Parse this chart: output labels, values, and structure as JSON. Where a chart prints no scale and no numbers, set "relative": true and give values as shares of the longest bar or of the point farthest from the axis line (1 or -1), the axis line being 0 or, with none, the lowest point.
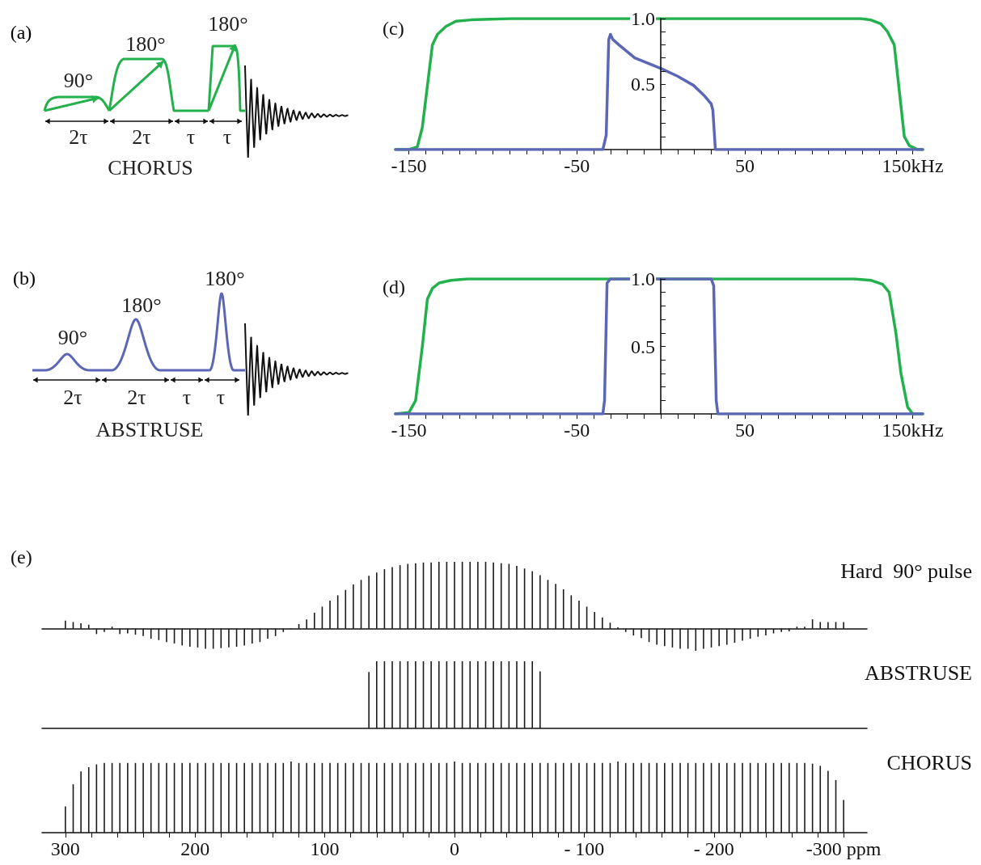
{
  "chart_data": [
    {
      "type": "other",
      "title": "(a)",
      "annotations": [
        "90°",
        "180°",
        "180°",
        "2τ",
        "2τ",
        "τ",
        "τ",
        "CHORUS"
      ]
    },
    {
      "type": "line",
      "title": "(c)",
      "xlim": [
        -158,
        156
      ],
      "ylim": [
        0,
        1
      ],
      "xticks": [
        -150,
        {
          "value": -140,
          "label": null
        },
        {
          "value": -130,
          "label": null
        },
        {
          "value": -120,
          "label": null
        },
        {
          "value": -110,
          "label": null
        },
        {
          "value": -100,
          "label": null
        },
        {
          "value": -90,
          "label": null
        },
        {
          "value": -80,
          "label": null
        },
        {
          "value": -70,
          "label": null
        },
        {
          "value": -60,
          "label": null
        },
        -50,
        {
          "value": -40,
          "label": null
        },
        {
          "value": -30,
          "label": null
        },
        {
          "value": -20,
          "label": null
        },
        {
          "value": -10,
          "label": null
        },
        {
          "value": 0,
          "label": null
        },
        {
          "value": 10,
          "label": null
        },
        {
          "value": 20,
          "label": null
        },
        {
          "value": 30,
          "label": null
        },
        {
          "value": 40,
          "label": null
        },
        50,
        {
          "value": 60,
          "label": null
        },
        {
          "value": 70,
          "label": null
        },
        {
          "value": 80,
          "label": null
        },
        {
          "value": 90,
          "label": null
        },
        {
          "value": 100,
          "label": null
        },
        {
          "value": 110,
          "label": null
        },
        {
          "value": 120,
          "label": null
        },
        {
          "value": 130,
          "label": null
        },
        {
          "value": 140,
          "label": null
        },
        {
          "value": 150,
          "label": "150kHz"
        }
      ],
      "yticks": [
        {
          "value": 0.1,
          "label": null
        },
        {
          "value": 0.2,
          "label": null
        },
        {
          "value": 0.3,
          "label": null
        },
        {
          "value": 0.4,
          "label": null
        },
        0.5,
        {
          "value": 0.6,
          "label": null
        },
        {
          "value": 0.7,
          "label": null
        },
        {
          "value": 0.8,
          "label": null
        },
        {
          "value": 0.9,
          "label": null
        },
        {
          "value": 1,
          "label": "1.0"
        }
      ],
      "marker": "none",
      "line_style": "solid",
      "series": [
        {
          "color": "#22b14c",
          "x": [
            -158,
            -150,
            -145,
            -142,
            -136,
            -133,
            -128,
            -122,
            -113,
            -90,
            0,
            90,
            119,
            125,
            131,
            135,
            139,
            145,
            148,
            153,
            156
          ],
          "values": [
            0,
            0,
            0.02,
            0.17,
            0.8,
            0.88,
            0.94,
            0.98,
            0.99,
            1,
            1,
            1,
            1,
            0.99,
            0.96,
            0.9,
            0.8,
            0.1,
            0.03,
            0,
            0
          ]
        },
        {
          "color": "#5b67b5",
          "x": [
            -158,
            -34.5,
            -32.5,
            -31,
            -30,
            -28.5,
            -25,
            -15.5,
            0,
            10,
            19.5,
            26,
            30,
            31,
            32.5,
            156
          ],
          "values": [
            0,
            0,
            0.11,
            0.84,
            0.88,
            0.84,
            0.8,
            0.7,
            0.62,
            0.56,
            0.49,
            0.41,
            0.35,
            0.3,
            0,
            0
          ]
        }
      ]
    },
    {
      "type": "other",
      "title": "(b)",
      "annotations": [
        "90°",
        "180°",
        "180°",
        "2τ",
        "2τ",
        "τ",
        "τ",
        "ABSTRUSE"
      ]
    },
    {
      "type": "line",
      "title": "(d)",
      "xlim": [
        -158,
        156
      ],
      "ylim": [
        0,
        1
      ],
      "xticks": [
        -150,
        {
          "value": -140,
          "label": null
        },
        {
          "value": -130,
          "label": null
        },
        {
          "value": -120,
          "label": null
        },
        {
          "value": -110,
          "label": null
        },
        {
          "value": -100,
          "label": null
        },
        {
          "value": -90,
          "label": null
        },
        {
          "value": -80,
          "label": null
        },
        {
          "value": -70,
          "label": null
        },
        {
          "value": -60,
          "label": null
        },
        -50,
        {
          "value": -40,
          "label": null
        },
        {
          "value": -30,
          "label": null
        },
        {
          "value": -20,
          "label": null
        },
        {
          "value": -10,
          "label": null
        },
        {
          "value": 0,
          "label": null
        },
        {
          "value": 10,
          "label": null
        },
        {
          "value": 20,
          "label": null
        },
        {
          "value": 30,
          "label": null
        },
        {
          "value": 40,
          "label": null
        },
        50,
        {
          "value": 60,
          "label": null
        },
        {
          "value": 70,
          "label": null
        },
        {
          "value": 80,
          "label": null
        },
        {
          "value": 90,
          "label": null
        },
        {
          "value": 100,
          "label": null
        },
        {
          "value": 110,
          "label": null
        },
        {
          "value": 120,
          "label": null
        },
        {
          "value": 130,
          "label": null
        },
        {
          "value": 140,
          "label": null
        },
        {
          "value": 150,
          "label": "150kHz"
        }
      ],
      "yticks": [
        {
          "value": 0.1,
          "label": null
        },
        {
          "value": 0.2,
          "label": null
        },
        {
          "value": 0.3,
          "label": null
        },
        {
          "value": 0.4,
          "label": null
        },
        0.5,
        {
          "value": 0.6,
          "label": null
        },
        {
          "value": 0.7,
          "label": null
        },
        {
          "value": 0.8,
          "label": null
        },
        {
          "value": 0.9,
          "label": null
        },
        {
          "value": 1,
          "label": "1.0"
        }
      ],
      "marker": "none",
      "line_style": "solid",
      "series": [
        {
          "color": "#22b14c",
          "x": [
            -158,
            -150,
            -146,
            -142,
            -139,
            -136,
            -132,
            -125,
            -115,
            0,
            115,
            125,
            132,
            136,
            140,
            143,
            147,
            150,
            156
          ],
          "values": [
            0,
            0.01,
            0.1,
            0.5,
            0.85,
            0.93,
            0.97,
            0.99,
            1,
            1,
            1,
            0.99,
            0.96,
            0.9,
            0.6,
            0.3,
            0.05,
            0,
            0
          ]
        },
        {
          "color": "#5b67b5",
          "x": [
            -158,
            -34.5,
            -33.5,
            -32,
            -30,
            0,
            30,
            31.5,
            33,
            34,
            156
          ],
          "values": [
            0,
            0,
            0.1,
            0.97,
            1,
            1,
            1,
            0.95,
            0.1,
            0,
            0
          ]
        }
      ]
    },
    {
      "type": "bar",
      "title": "(e)",
      "relative": true,
      "xlim": [
        318,
        -318
      ],
      "tick_labels": false,
      "x": [
        300,
        294,
        288,
        282,
        276,
        270,
        264,
        258,
        252,
        246,
        240,
        234,
        228,
        222,
        216,
        210,
        204,
        198,
        192,
        186,
        180,
        174,
        168,
        162,
        156,
        150,
        144,
        138,
        132,
        126,
        120,
        114,
        108,
        102,
        96,
        90,
        84,
        78,
        72,
        66,
        60,
        54,
        48,
        42,
        36,
        30,
        24,
        18,
        12,
        6,
        0,
        -6,
        -12,
        -18,
        -24,
        -30,
        -36,
        -42,
        -48,
        -54,
        -60,
        -66,
        -72,
        -78,
        -84,
        -90,
        -96,
        -102,
        -108,
        -114,
        -120,
        -126,
        -132,
        -138,
        -144,
        -150,
        -156,
        -162,
        -168,
        -174,
        -180,
        -186,
        -192,
        -198,
        -204,
        -210,
        -216,
        -222,
        -228,
        -234,
        -240,
        -246,
        -252,
        -258,
        -264,
        -270,
        -276,
        -282,
        -288,
        -294,
        -300
      ],
      "series": [
        {
          "name": "Hard  90° pulse",
          "color": "#1a1a1a",
          "values": [
            0.12,
            0.1,
            0.08,
            0.06,
            -0.08,
            -0.05,
            0.03,
            -0.08,
            -0.07,
            -0.09,
            -0.11,
            -0.15,
            -0.17,
            -0.2,
            -0.22,
            -0.25,
            -0.27,
            -0.28,
            -0.3,
            -0.3,
            -0.29,
            -0.28,
            -0.27,
            -0.25,
            -0.22,
            -0.2,
            -0.15,
            -0.11,
            -0.05,
            0.01,
            0.07,
            0.14,
            0.24,
            0.33,
            0.42,
            0.5,
            0.58,
            0.66,
            0.73,
            0.79,
            0.84,
            0.89,
            0.92,
            0.95,
            0.97,
            0.98,
            0.99,
            0.99,
            1,
            1,
            1,
            1,
            1,
            1,
            1,
            0.99,
            0.98,
            0.97,
            0.94,
            0.9,
            0.86,
            0.8,
            0.73,
            0.67,
            0.59,
            0.5,
            0.42,
            0.33,
            0.25,
            0.17,
            0.09,
            0.02,
            -0.05,
            -0.1,
            -0.14,
            -0.2,
            -0.24,
            -0.26,
            -0.28,
            -0.3,
            -0.3,
            -0.33,
            -0.3,
            -0.28,
            -0.26,
            -0.24,
            -0.21,
            -0.18,
            -0.15,
            -0.12,
            -0.1,
            -0.07,
            -0.05,
            -0.04,
            0.03,
            0.03,
            0.14,
            0.1,
            0.1,
            0.1,
            0.1
          ]
        }
      ]
    },
    {
      "type": "bar",
      "relative": true,
      "xlim": [
        318,
        -318
      ],
      "tick_labels": false,
      "x": [
        66,
        60,
        54,
        48,
        42,
        36,
        30,
        24,
        18,
        12,
        6,
        0,
        -6,
        -12,
        -18,
        -24,
        -30,
        -36,
        -42,
        -48,
        -54,
        -60,
        -66
      ],
      "series": [
        {
          "name": "ABSTRUSE",
          "color": "#1a1a1a",
          "values": [
            0.84,
            1,
            1,
            1,
            1,
            1,
            1,
            1,
            1,
            1,
            1,
            1,
            1,
            1,
            1,
            1,
            1,
            1,
            1,
            1,
            1,
            1,
            0.85
          ]
        }
      ]
    },
    {
      "type": "bar",
      "relative": true,
      "xlim": [
        318,
        -318
      ],
      "xticks": [
        300,
        {
          "value": 280,
          "label": null
        },
        {
          "value": 260,
          "label": null
        },
        {
          "value": 240,
          "label": null
        },
        {
          "value": 220,
          "label": null
        },
        200,
        {
          "value": 180,
          "label": null
        },
        {
          "value": 160,
          "label": null
        },
        {
          "value": 140,
          "label": null
        },
        {
          "value": 120,
          "label": null
        },
        100,
        {
          "value": 80,
          "label": null
        },
        {
          "value": 60,
          "label": null
        },
        {
          "value": 40,
          "label": null
        },
        {
          "value": 20,
          "label": null
        },
        0,
        {
          "value": -20,
          "label": null
        },
        {
          "value": -40,
          "label": null
        },
        {
          "value": -60,
          "label": null
        },
        {
          "value": -80,
          "label": null
        },
        {
          "value": -100,
          "label": "- 100"
        },
        {
          "value": -120,
          "label": null
        },
        {
          "value": -140,
          "label": null
        },
        {
          "value": -160,
          "label": null
        },
        {
          "value": -180,
          "label": null
        },
        {
          "value": -200,
          "label": "- 200"
        },
        {
          "value": -220,
          "label": null
        },
        {
          "value": -240,
          "label": null
        },
        {
          "value": -260,
          "label": null
        },
        {
          "value": -280,
          "label": null
        },
        {
          "value": -300,
          "label": "-300 ppm"
        }
      ],
      "x": [
        300,
        294,
        288,
        282,
        276,
        270,
        264,
        258,
        252,
        246,
        240,
        234,
        228,
        222,
        216,
        210,
        204,
        198,
        192,
        186,
        180,
        174,
        168,
        162,
        156,
        150,
        144,
        138,
        132,
        126,
        120,
        114,
        108,
        102,
        96,
        90,
        84,
        78,
        72,
        66,
        60,
        54,
        48,
        42,
        36,
        30,
        24,
        18,
        12,
        6,
        0,
        -6,
        -12,
        -18,
        -24,
        -30,
        -36,
        -42,
        -48,
        -54,
        -60,
        -66,
        -72,
        -78,
        -84,
        -90,
        -96,
        -102,
        -108,
        -114,
        -120,
        -126,
        -132,
        -138,
        -144,
        -150,
        -156,
        -162,
        -168,
        -174,
        -180,
        -186,
        -192,
        -198,
        -204,
        -210,
        -216,
        -222,
        -228,
        -234,
        -240,
        -246,
        -252,
        -258,
        -264,
        -270,
        -276,
        -282,
        -288,
        -294,
        -300
      ],
      "series": [
        {
          "name": "CHORUS",
          "color": "#1a1a1a",
          "values": [
            0.37,
            0.68,
            0.86,
            0.92,
            0.96,
            0.98,
            0.98,
            0.98,
            0.98,
            0.98,
            0.98,
            0.98,
            0.98,
            0.98,
            0.98,
            0.98,
            0.98,
            0.98,
            0.98,
            0.98,
            0.98,
            0.98,
            0.98,
            0.98,
            0.98,
            0.98,
            0.98,
            0.98,
            0.98,
            1,
            0.98,
            0.98,
            0.98,
            0.98,
            0.98,
            0.98,
            0.98,
            0.98,
            0.98,
            0.98,
            0.98,
            0.98,
            0.98,
            0.98,
            0.98,
            0.98,
            0.98,
            0.98,
            0.98,
            0.98,
            1,
            0.98,
            0.98,
            0.98,
            0.98,
            0.98,
            0.98,
            0.98,
            0.98,
            0.98,
            0.98,
            0.98,
            0.98,
            0.98,
            0.98,
            0.98,
            0.98,
            0.98,
            0.98,
            0.98,
            0.98,
            1,
            0.98,
            0.98,
            0.98,
            0.98,
            0.98,
            0.98,
            0.98,
            0.98,
            0.98,
            0.98,
            0.98,
            0.98,
            0.98,
            0.98,
            0.98,
            0.98,
            0.98,
            0.98,
            0.98,
            0.98,
            0.98,
            0.98,
            0.98,
            0.98,
            0.97,
            0.94,
            0.87,
            0.74,
            0.46
          ]
        }
      ]
    }
  ]
}
